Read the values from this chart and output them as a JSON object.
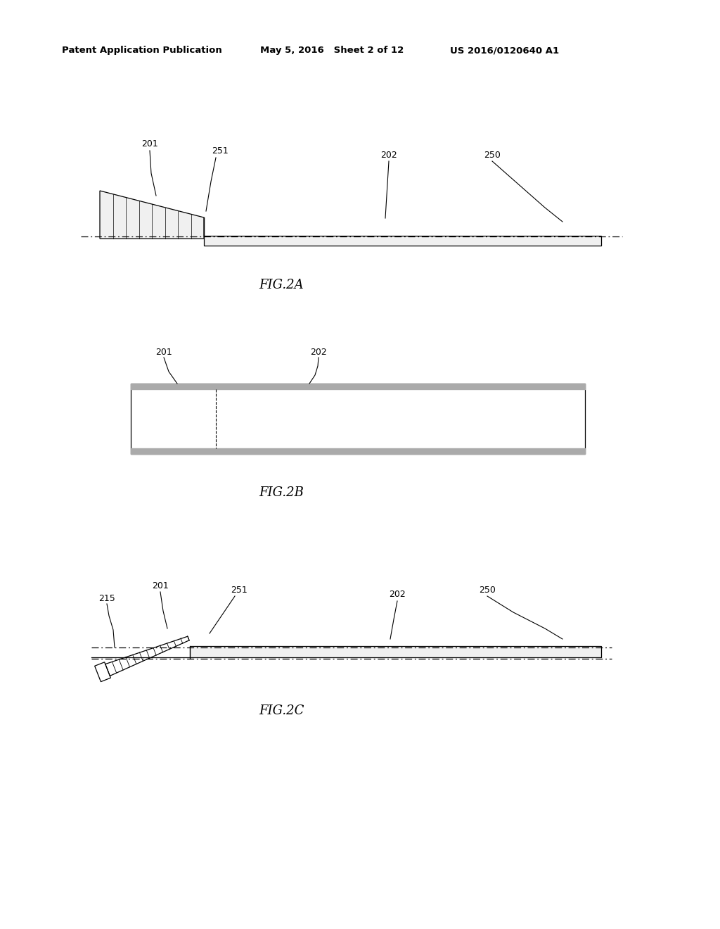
{
  "bg_color": "#ffffff",
  "text_color": "#000000",
  "header_left": "Patent Application Publication",
  "header_mid": "May 5, 2016   Sheet 2 of 12",
  "header_right": "US 2016/0120640 A1",
  "fig2a_label": "FIG.2A",
  "fig2b_label": "FIG.2B",
  "fig2c_label": "FIG.2C",
  "ref_201": "201",
  "ref_202": "202",
  "ref_250": "250",
  "ref_251": "251",
  "ref_215": "215"
}
